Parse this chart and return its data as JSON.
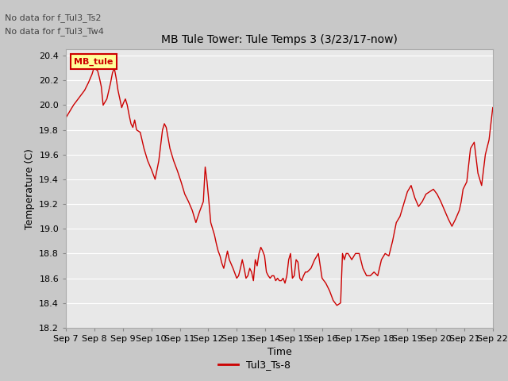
{
  "title": "MB Tule Tower: Tule Temps 3 (3/23/17-now)",
  "xlabel": "Time",
  "ylabel": "Temperature (C)",
  "ylim": [
    18.2,
    20.45
  ],
  "yticks": [
    18.2,
    18.4,
    18.6,
    18.8,
    19.0,
    19.2,
    19.4,
    19.6,
    19.8,
    20.0,
    20.2,
    20.4
  ],
  "xtick_labels": [
    "Sep 7",
    "Sep 8",
    "Sep 9",
    "Sep 10",
    "Sep 11",
    "Sep 12",
    "Sep 13",
    "Sep 14",
    "Sep 15",
    "Sep 16",
    "Sep 17",
    "Sep 18",
    "Sep 19",
    "Sep 20",
    "Sep 21",
    "Sep 22"
  ],
  "line_color": "#cc0000",
  "line_label": "Tul3_Ts-8",
  "annotations": [
    "No data for f_Tul3_Ts2",
    "No data for f_Tul3_Tw4"
  ],
  "legend_label": "MB_tule",
  "legend_bg": "#ffff99",
  "legend_border": "#cc0000",
  "fig_bg": "#c8c8c8",
  "plot_bg": "#e8e8e8",
  "grid_color": "#ffffff",
  "x_values": [
    0,
    0.2,
    0.35,
    0.5,
    0.6,
    0.7,
    0.75,
    0.85,
    0.9,
    0.95,
    1.0,
    1.1,
    1.2,
    1.25,
    1.3,
    1.35,
    1.4,
    1.45,
    1.5,
    1.55,
    1.6,
    1.65,
    1.7,
    1.75,
    1.8,
    1.85,
    1.9,
    2.0,
    2.1,
    2.2,
    2.3,
    2.4,
    2.5,
    2.6,
    2.65,
    2.7,
    2.8,
    2.9,
    3.0,
    3.1,
    3.2,
    3.3,
    3.4,
    3.5,
    3.6,
    3.7,
    3.75,
    3.8,
    3.85,
    3.9,
    4.0,
    4.05,
    4.1,
    4.15,
    4.2,
    4.25,
    4.3,
    4.35,
    4.4,
    4.5,
    4.6,
    4.65,
    4.7,
    4.75,
    4.8,
    4.85,
    4.9,
    4.95,
    5.0,
    5.05,
    5.1,
    5.15,
    5.2,
    5.25,
    5.3,
    5.35,
    5.4,
    5.45,
    5.5,
    5.55,
    5.6,
    5.65,
    5.7,
    5.75,
    5.8,
    5.85,
    5.9,
    5.95,
    6.0,
    6.05,
    6.1,
    6.15,
    6.2,
    6.25,
    6.3,
    6.35,
    6.4,
    6.45,
    6.5,
    6.6,
    6.7,
    6.8,
    6.9,
    7.0,
    7.1,
    7.2,
    7.3,
    7.4,
    7.45,
    7.5,
    7.55,
    7.6,
    7.7,
    7.8,
    7.9,
    8.0,
    8.1,
    8.2,
    8.3,
    8.4,
    8.5,
    8.6,
    8.7,
    8.8,
    8.9,
    9.0,
    9.1,
    9.2,
    9.3,
    9.4,
    9.5,
    9.6,
    9.7,
    9.8,
    9.9,
    10.0,
    10.1,
    10.2,
    10.3,
    10.4,
    10.5,
    10.6,
    10.65,
    10.7,
    10.8,
    10.9,
    11.0,
    11.1,
    11.2,
    11.3,
    11.4,
    11.5
  ],
  "y_values": [
    19.9,
    20.0,
    20.06,
    20.12,
    20.18,
    20.25,
    20.3,
    20.28,
    20.22,
    20.15,
    20.0,
    20.05,
    20.18,
    20.26,
    20.3,
    20.22,
    20.12,
    20.05,
    19.98,
    20.02,
    20.05,
    20.0,
    19.92,
    19.85,
    19.82,
    19.88,
    19.8,
    19.78,
    19.65,
    19.55,
    19.48,
    19.4,
    19.55,
    19.8,
    19.85,
    19.82,
    19.65,
    19.55,
    19.47,
    19.38,
    19.28,
    19.22,
    19.15,
    19.05,
    19.14,
    19.22,
    19.5,
    19.38,
    19.22,
    19.05,
    18.95,
    18.88,
    18.82,
    18.78,
    18.72,
    18.68,
    18.75,
    18.82,
    18.75,
    18.68,
    18.6,
    18.62,
    18.68,
    18.75,
    18.68,
    18.6,
    18.62,
    18.68,
    18.65,
    18.58,
    18.75,
    18.7,
    18.8,
    18.85,
    18.82,
    18.78,
    18.65,
    18.62,
    18.6,
    18.62,
    18.62,
    18.58,
    18.6,
    18.58,
    18.58,
    18.6,
    18.56,
    18.62,
    18.75,
    18.8,
    18.6,
    18.62,
    18.75,
    18.73,
    18.6,
    18.58,
    18.62,
    18.65,
    18.65,
    18.68,
    18.75,
    18.8,
    18.6,
    18.56,
    18.5,
    18.42,
    18.38,
    18.4,
    18.8,
    18.75,
    18.8,
    18.8,
    18.75,
    18.8,
    18.8,
    18.68,
    18.62,
    18.62,
    18.65,
    18.62,
    18.75,
    18.8,
    18.78,
    18.9,
    19.05,
    19.1,
    19.2,
    19.3,
    19.35,
    19.25,
    19.18,
    19.22,
    19.28,
    19.3,
    19.32,
    19.28,
    19.22,
    19.15,
    19.08,
    19.02,
    19.08,
    19.15,
    19.22,
    19.32,
    19.38,
    19.65,
    19.7,
    19.45,
    19.35,
    19.6,
    19.72,
    19.98
  ]
}
